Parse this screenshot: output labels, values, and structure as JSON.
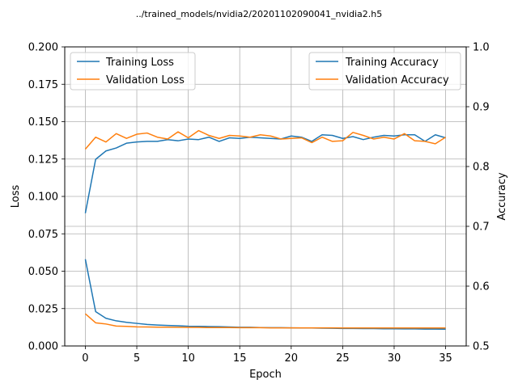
{
  "chart_data": {
    "type": "line",
    "title": "../trained_models/nvidia2/20201102090041_nvidia2.h5",
    "xlabel": "Epoch",
    "ylabel_left": "Loss",
    "ylabel_right": "Accuracy",
    "xlim": [
      -2,
      37
    ],
    "ylim_left": [
      0,
      0.2
    ],
    "ylim_right": [
      0.5,
      1.0
    ],
    "x_ticks": [
      0,
      5,
      10,
      15,
      20,
      25,
      30,
      35
    ],
    "y_ticks_left": [
      0.0,
      0.025,
      0.05,
      0.075,
      0.1,
      0.125,
      0.15,
      0.175,
      0.2
    ],
    "y_tick_labels_left": [
      "0.000",
      "0.025",
      "0.050",
      "0.075",
      "0.100",
      "0.125",
      "0.150",
      "0.175",
      "0.200"
    ],
    "y_ticks_right": [
      0.5,
      0.6,
      0.7,
      0.8,
      0.9,
      1.0
    ],
    "y_tick_labels_right": [
      "0.5",
      "0.6",
      "0.7",
      "0.8",
      "0.9",
      "1.0"
    ],
    "grid": true,
    "colors": {
      "training": "#1f77b4",
      "validation": "#ff7f0e"
    },
    "x": [
      0,
      1,
      2,
      3,
      4,
      5,
      6,
      7,
      8,
      9,
      10,
      11,
      12,
      13,
      14,
      15,
      16,
      17,
      18,
      19,
      20,
      21,
      22,
      23,
      24,
      25,
      26,
      27,
      28,
      29,
      30,
      31,
      32,
      33,
      34,
      35
    ],
    "legend_left": {
      "position": "top-left",
      "entries": [
        "Training Loss",
        "Validation Loss"
      ]
    },
    "legend_right": {
      "position": "top-right",
      "entries": [
        "Training Accuracy",
        "Validation Accuracy"
      ]
    },
    "series": [
      {
        "name": "Training Loss",
        "axis": "left",
        "color": "#1f77b4",
        "values": [
          0.058,
          0.023,
          0.0185,
          0.0168,
          0.0158,
          0.0151,
          0.0144,
          0.014,
          0.0137,
          0.0135,
          0.0132,
          0.0131,
          0.013,
          0.0129,
          0.0127,
          0.0125,
          0.0125,
          0.0123,
          0.0122,
          0.0122,
          0.0121,
          0.012,
          0.012,
          0.0119,
          0.0118,
          0.0117,
          0.0117,
          0.0116,
          0.0116,
          0.0115,
          0.0115,
          0.0114,
          0.0114,
          0.0113,
          0.0113,
          0.0112
        ]
      },
      {
        "name": "Validation Loss",
        "axis": "left",
        "color": "#ff7f0e",
        "values": [
          0.0215,
          0.0155,
          0.0147,
          0.0133,
          0.0131,
          0.0128,
          0.0127,
          0.0126,
          0.0126,
          0.0125,
          0.0124,
          0.0124,
          0.0123,
          0.0123,
          0.0123,
          0.0122,
          0.0122,
          0.0122,
          0.0121,
          0.0121,
          0.0121,
          0.0121,
          0.0121,
          0.0121,
          0.0121,
          0.012,
          0.012,
          0.012,
          0.012,
          0.012,
          0.012,
          0.012,
          0.012,
          0.012,
          0.012,
          0.012
        ]
      },
      {
        "name": "Training Accuracy",
        "axis": "right",
        "color": "#1f77b4",
        "values": [
          0.722,
          0.812,
          0.826,
          0.831,
          0.839,
          0.841,
          0.842,
          0.842,
          0.845,
          0.843,
          0.846,
          0.845,
          0.849,
          0.842,
          0.848,
          0.847,
          0.849,
          0.848,
          0.847,
          0.846,
          0.851,
          0.849,
          0.842,
          0.853,
          0.852,
          0.847,
          0.85,
          0.845,
          0.849,
          0.852,
          0.851,
          0.853,
          0.853,
          0.842,
          0.853,
          0.848
        ]
      },
      {
        "name": "Validation Accuracy",
        "axis": "right",
        "color": "#ff7f0e",
        "values": [
          0.829,
          0.849,
          0.841,
          0.855,
          0.847,
          0.854,
          0.856,
          0.849,
          0.846,
          0.858,
          0.848,
          0.86,
          0.852,
          0.847,
          0.852,
          0.851,
          0.849,
          0.853,
          0.851,
          0.846,
          0.847,
          0.848,
          0.84,
          0.849,
          0.842,
          0.843,
          0.857,
          0.852,
          0.846,
          0.849,
          0.846,
          0.855,
          0.843,
          0.842,
          0.838,
          0.849
        ]
      }
    ]
  }
}
